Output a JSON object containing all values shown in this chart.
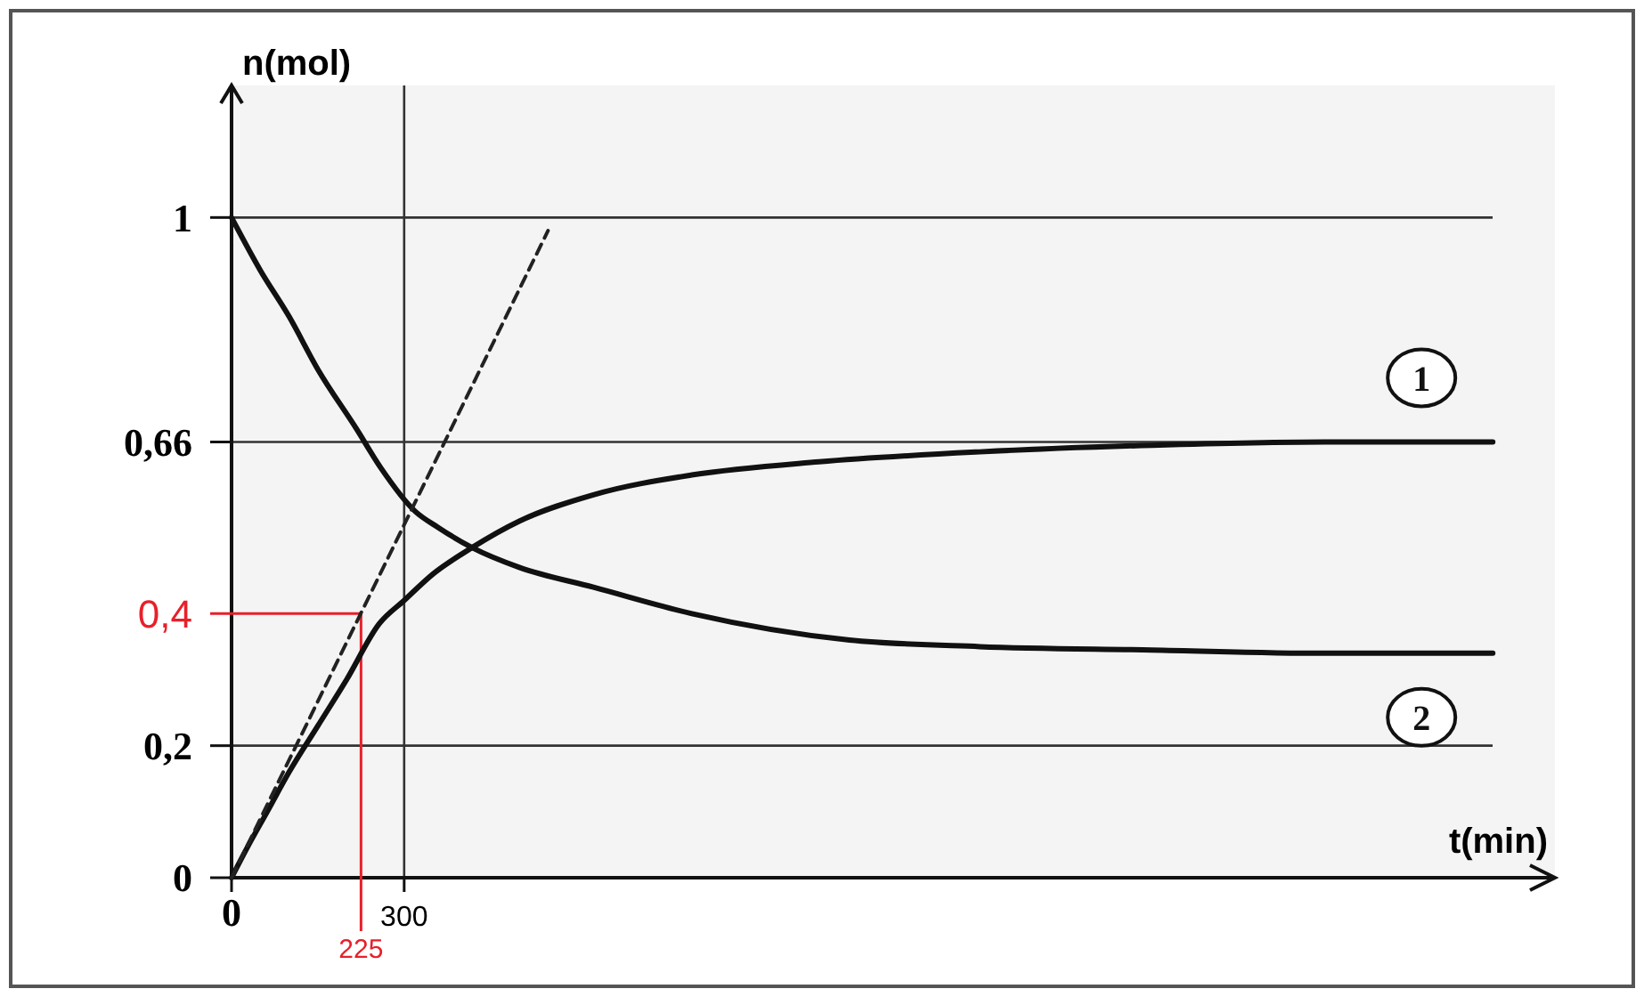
{
  "chart_data": {
    "type": "line",
    "xlabel": "t(min)",
    "ylabel": "n(mol)",
    "xlim": [
      0,
      2300
    ],
    "ylim": [
      0,
      1.2
    ],
    "xticks": [
      0,
      300
    ],
    "yticks": [
      0,
      {
        "value": 0.2,
        "label": "0,2"
      },
      {
        "value": 0.66,
        "label": "0,66"
      },
      1
    ],
    "series": [
      {
        "name": "1",
        "color": "#111111",
        "x": [
          0,
          30,
          62,
          100,
          150,
          200,
          257,
          300,
          350,
          418,
          500,
          629,
          800,
          1021,
          1300,
          1600,
          1900,
          2192
        ],
        "values": [
          0,
          0.05,
          0.1,
          0.16,
          0.23,
          0.3,
          0.385,
          0.42,
          0.46,
          0.5,
          0.54,
          0.58,
          0.61,
          0.63,
          0.645,
          0.655,
          0.66,
          0.66
        ]
      },
      {
        "name": "2",
        "color": "#111111",
        "x": [
          0,
          50,
          100,
          150,
          217,
          260,
          319,
          360,
          418,
          500,
          629,
          800,
          1074,
          1300,
          1600,
          1900,
          2192
        ],
        "values": [
          1,
          0.92,
          0.85,
          0.77,
          0.68,
          0.62,
          0.555,
          0.53,
          0.5,
          0.47,
          0.44,
          0.4,
          0.36,
          0.35,
          0.345,
          0.34,
          0.34
        ]
      },
      {
        "color": "#222222",
        "x": [
          0,
          550
        ],
        "values": [
          0,
          0.98
        ],
        "line_style": "dashed"
      }
    ],
    "ref_lines": [
      {
        "axis": "y",
        "value": 0.4,
        "label": "0,4",
        "color": "#e8202a"
      },
      {
        "axis": "x",
        "value": 225,
        "label": "225",
        "color": "#e8202a"
      }
    ],
    "grid": true,
    "marker": "none",
    "line_style": "solid"
  }
}
